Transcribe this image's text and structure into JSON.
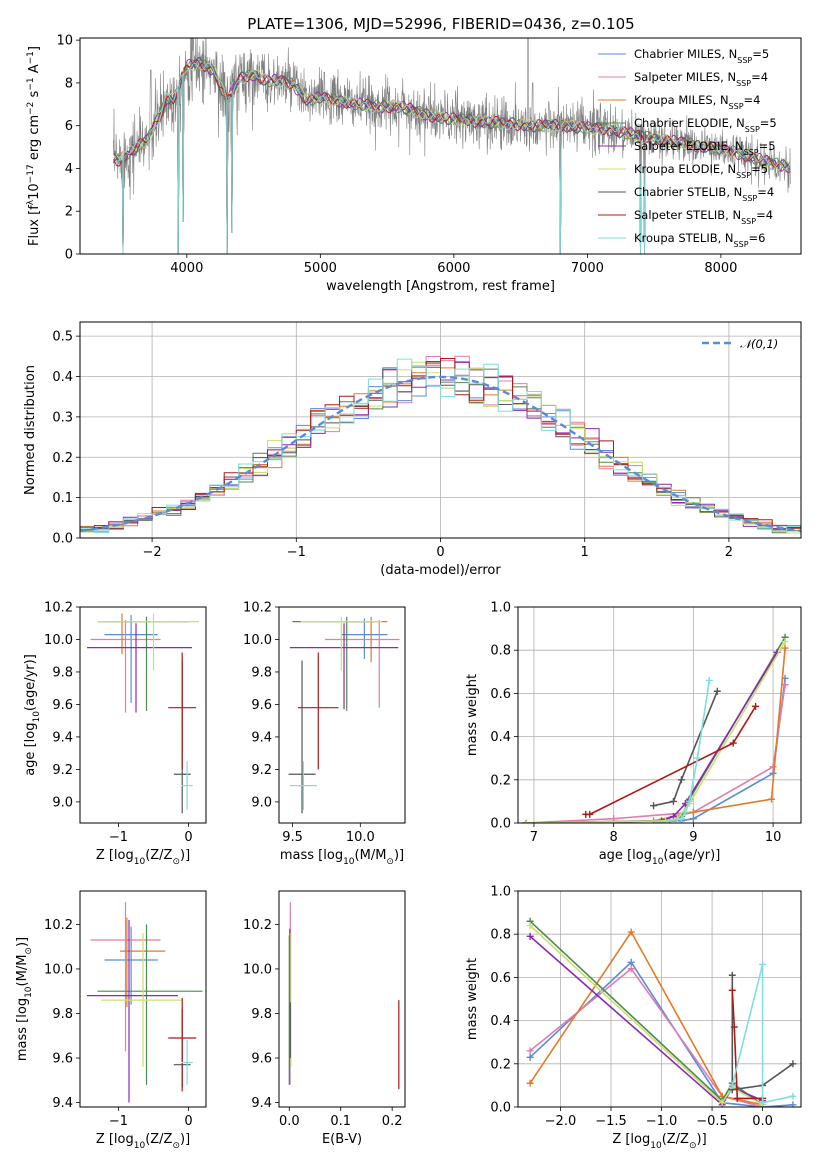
{
  "figure": {
    "title": "PLATE=1306, MJD=52996, FIBERID=0436, z=0.105"
  },
  "models": [
    {
      "name": "Chabrier MILES, N",
      "sub": "SSP",
      "tail": "=5",
      "color": "#5b8bd8"
    },
    {
      "name": "Salpeter MILES, N",
      "sub": "SSP",
      "tail": "=4",
      "color": "#e07cb0"
    },
    {
      "name": "Kroupa MILES, N",
      "sub": "SSP",
      "tail": "=4",
      "color": "#e07b28"
    },
    {
      "name": "Chabrier ELODIE, N",
      "sub": "SSP",
      "tail": "=5",
      "color": "#4e8a4e"
    },
    {
      "name": "Salpeter ELODIE, N",
      "sub": "SSP",
      "tail": "=5",
      "color": "#8e28b0"
    },
    {
      "name": "Kroupa ELODIE, N",
      "sub": "SSP",
      "tail": "=5",
      "color": "#c8e070"
    },
    {
      "name": "Chabrier STELIB, N",
      "sub": "SSP",
      "tail": "=4",
      "color": "#555555"
    },
    {
      "name": "Salpeter STELIB, N",
      "sub": "SSP",
      "tail": "=4",
      "color": "#b01818"
    },
    {
      "name": "Kroupa STELIB, N",
      "sub": "SSP",
      "tail": "=6",
      "color": "#80dede"
    }
  ],
  "chart_data": [
    {
      "id": "spectrum",
      "type": "line",
      "title": "PLATE=1306, MJD=52996, FIBERID=0436, z=0.105",
      "xlabel": "wavelength [Angstrom, rest frame]",
      "ylabel_parts": [
        "Flux [f",
        "λ",
        "10",
        "−17",
        " erg cm",
        "−2",
        " s",
        "−1",
        " A",
        "−1",
        "]"
      ],
      "xlim": [
        3200,
        8600
      ],
      "ylim": [
        0,
        10.1
      ],
      "xticks": [
        4000,
        5000,
        6000,
        7000,
        8000
      ],
      "yticks": [
        0,
        2,
        4,
        6,
        8,
        10
      ],
      "data_color": "#808080",
      "continuum_x": [
        3500,
        3600,
        3700,
        3800,
        3850,
        3900,
        3950,
        4000,
        4100,
        4200,
        4300,
        4400,
        4500,
        4600,
        4700,
        4800,
        4900,
        5000,
        5200,
        5400,
        5600,
        5800,
        6000,
        6200,
        6400,
        6600,
        6800,
        7000,
        7200,
        7400,
        7600,
        7800,
        8000,
        8200,
        8400,
        8500
      ],
      "continuum_y": [
        4.4,
        4.9,
        5.3,
        6.5,
        7.3,
        7.2,
        8.0,
        8.8,
        8.9,
        8.6,
        7.2,
        8.2,
        8.4,
        8.1,
        8.1,
        7.9,
        7.2,
        7.3,
        7.1,
        6.9,
        6.9,
        6.5,
        6.3,
        6.2,
        6.1,
        6.0,
        6.0,
        5.9,
        5.8,
        5.5,
        5.3,
        5.1,
        4.9,
        4.6,
        4.2,
        4.1
      ],
      "noise_amplitude": 1.4,
      "dips": [
        [
          3520,
          0
        ],
        [
          3935,
          0
        ],
        [
          3970,
          1.5
        ],
        [
          4300,
          0
        ],
        [
          4340,
          1.0
        ],
        [
          6800,
          0
        ],
        [
          7400,
          0
        ],
        [
          7430,
          0
        ]
      ],
      "spikes": [
        [
          6555,
          10.1
        ],
        [
          6590,
          8.0
        ],
        [
          5030,
          8.5
        ],
        [
          3730,
          8.6
        ]
      ],
      "legend": "upper right"
    },
    {
      "id": "residuals",
      "type": "histogram",
      "xlabel": "(data-model)/error",
      "ylabel": "Normed distribution",
      "xlim": [
        -2.5,
        2.5
      ],
      "ylim": [
        0,
        0.535
      ],
      "xticks": [
        -2,
        -1,
        0,
        1,
        2
      ],
      "yticks": [
        0,
        0.1,
        0.2,
        0.3,
        0.4,
        0.5
      ],
      "bin_width": 0.1,
      "gaussian_label": "𝒩(0,1)",
      "gaussian_color": "#5b8bd8",
      "grid": true,
      "legend": "upper right"
    },
    {
      "id": "age_vs_Z",
      "type": "errorbar",
      "xlabel_parts": [
        "Z [log",
        "10",
        "(Z/Z",
        "⊙",
        ")]"
      ],
      "ylabel_parts": [
        "age  [log",
        "10",
        "(age/yr)]"
      ],
      "xlim": [
        -1.55,
        0.25
      ],
      "ylim": [
        8.87,
        10.2
      ],
      "xticks": [
        -1,
        0
      ],
      "yticks": [
        9.0,
        9.2,
        9.4,
        9.6,
        9.8,
        10.0,
        10.2
      ],
      "ytick_labels": [
        "9.0",
        "9.2",
        "9.4",
        "9.6",
        "9.8",
        "10.0",
        "10.2"
      ],
      "points": [
        {
          "m": 0,
          "x": -0.82,
          "xerr": [
            0.38,
            0.38
          ],
          "y": 10.03,
          "yerr": [
            0.42,
            0.12
          ]
        },
        {
          "m": 1,
          "x": -0.9,
          "xerr": [
            0.5,
            0.5
          ],
          "y": 10.0,
          "yerr": [
            0.45,
            0.12
          ]
        },
        {
          "m": 2,
          "x": -0.95,
          "xerr": [
            0.1,
            0.12
          ],
          "y": 10.11,
          "yerr": [
            0.2,
            0.05
          ]
        },
        {
          "m": 3,
          "x": -0.6,
          "xerr": [
            0.7,
            0.6
          ],
          "y": 10.11,
          "yerr": [
            0.55,
            0.03
          ]
        },
        {
          "m": 4,
          "x": -0.75,
          "xerr": [
            0.7,
            0.8
          ],
          "y": 9.95,
          "yerr": [
            0.4,
            0.15
          ]
        },
        {
          "m": 5,
          "x": -0.5,
          "xerr": [
            0.8,
            0.65
          ],
          "y": 10.11,
          "yerr": [
            0.3,
            0.05
          ]
        },
        {
          "m": 6,
          "x": -0.09,
          "xerr": [
            0.12,
            0.12
          ],
          "y": 9.17,
          "yerr": [
            0.24,
            0.7
          ]
        },
        {
          "m": 7,
          "x": -0.09,
          "xerr": [
            0.2,
            0.2
          ],
          "y": 9.58,
          "yerr": [
            0.38,
            0.34
          ]
        },
        {
          "m": 8,
          "x": -0.02,
          "xerr": [
            0.08,
            0.08
          ],
          "y": 9.1,
          "yerr": [
            0.15,
            0.15
          ]
        }
      ]
    },
    {
      "id": "age_vs_mass",
      "type": "errorbar",
      "xlabel_parts": [
        "mass [log",
        "10",
        "(M/M",
        "⊙",
        ")]"
      ],
      "ylabel_parts": [],
      "xlim": [
        9.4,
        10.33
      ],
      "ylim": [
        8.87,
        10.2
      ],
      "xticks": [
        9.5,
        10.0
      ],
      "xtick_labels": [
        "9.5",
        "10.0"
      ],
      "yticks": [
        9.0,
        9.2,
        9.4,
        9.6,
        9.8,
        10.0,
        10.2
      ],
      "ytick_labels": [
        "9.0",
        "9.2",
        "9.4",
        "9.6",
        "9.8",
        "10.0",
        "10.2"
      ],
      "points": [
        {
          "m": 0,
          "x": 10.03,
          "xerr": [
            0.17,
            0.17
          ],
          "y": 10.03,
          "yerr": [
            0.15,
            0.1
          ]
        },
        {
          "m": 1,
          "x": 10.14,
          "xerr": [
            0.4,
            0.15
          ],
          "y": 10.0,
          "yerr": [
            0.42,
            0.12
          ]
        },
        {
          "m": 2,
          "x": 10.08,
          "xerr": [
            0.2,
            0.12
          ],
          "y": 10.11,
          "yerr": [
            0.25,
            0.03
          ]
        },
        {
          "m": 3,
          "x": 9.9,
          "xerr": [
            0.4,
            0.2
          ],
          "y": 10.11,
          "yerr": [
            0.55,
            0.03
          ]
        },
        {
          "m": 4,
          "x": 9.88,
          "xerr": [
            0.4,
            0.4
          ],
          "y": 9.95,
          "yerr": [
            0.38,
            0.15
          ]
        },
        {
          "m": 5,
          "x": 9.86,
          "xerr": [
            0.3,
            0.3
          ],
          "y": 10.11,
          "yerr": [
            0.3,
            0.03
          ]
        },
        {
          "m": 6,
          "x": 9.57,
          "xerr": [
            0.1,
            0.1
          ],
          "y": 9.17,
          "yerr": [
            0.24,
            0.7
          ]
        },
        {
          "m": 7,
          "x": 9.69,
          "xerr": [
            0.15,
            0.15
          ],
          "y": 9.58,
          "yerr": [
            0.38,
            0.34
          ]
        },
        {
          "m": 8,
          "x": 9.58,
          "xerr": [
            0.1,
            0.1
          ],
          "y": 9.1,
          "yerr": [
            0.15,
            0.15
          ]
        }
      ]
    },
    {
      "id": "weight_vs_age",
      "type": "line",
      "xlabel_parts": [
        "age  [log",
        "10",
        "(age/yr)]"
      ],
      "ylabel": "mass weight",
      "xlim": [
        6.8,
        10.35
      ],
      "ylim": [
        0,
        1.0
      ],
      "xticks": [
        7,
        8,
        9,
        10
      ],
      "yticks": [
        0,
        0.2,
        0.4,
        0.6,
        0.8,
        1.0
      ],
      "grid": true,
      "series": [
        {
          "m": 0,
          "x": [
            6.9,
            8.85,
            9.0,
            10.0,
            10.15
          ],
          "y": [
            0.0,
            0.01,
            0.02,
            0.23,
            0.67
          ]
        },
        {
          "m": 1,
          "x": [
            6.9,
            8.0,
            9.0,
            10.0,
            10.15
          ],
          "y": [
            0.0,
            0.02,
            0.05,
            0.26,
            0.64
          ]
        },
        {
          "m": 2,
          "x": [
            6.9,
            8.5,
            9.0,
            9.98,
            10.15
          ],
          "y": [
            0.0,
            0.01,
            0.05,
            0.11,
            0.81
          ]
        },
        {
          "m": 3,
          "x": [
            6.9,
            8.7,
            8.85,
            8.95,
            10.15
          ],
          "y": [
            0.0,
            0.01,
            0.03,
            0.11,
            0.86
          ]
        },
        {
          "m": 4,
          "x": [
            6.9,
            8.6,
            8.75,
            8.9,
            10.05
          ],
          "y": [
            0.0,
            0.01,
            0.03,
            0.09,
            0.79
          ]
        },
        {
          "m": 5,
          "x": [
            6.9,
            8.65,
            8.8,
            8.95,
            10.15
          ],
          "y": [
            0.0,
            0.01,
            0.02,
            0.09,
            0.84
          ]
        },
        {
          "m": 6,
          "x": [
            8.5,
            8.75,
            8.85,
            9.3
          ],
          "y": [
            0.08,
            0.1,
            0.2,
            0.61
          ]
        },
        {
          "m": 7,
          "x": [
            7.65,
            7.7,
            9.5,
            9.78
          ],
          "y": [
            0.04,
            0.04,
            0.37,
            0.54
          ]
        },
        {
          "m": 8,
          "x": [
            8.55,
            8.85,
            8.9,
            8.95,
            9.05,
            9.2
          ],
          "y": [
            0.0,
            0.02,
            0.05,
            0.1,
            0.3,
            0.66
          ]
        }
      ]
    },
    {
      "id": "mass_vs_Z",
      "type": "errorbar",
      "xlabel_parts": [
        "Z [log",
        "10",
        "(Z/Z",
        "⊙",
        ")]"
      ],
      "ylabel_parts": [
        "mass [log",
        "10",
        "(M/M",
        "⊙",
        ")]"
      ],
      "xlim": [
        -1.55,
        0.25
      ],
      "ylim": [
        9.38,
        10.35
      ],
      "xticks": [
        -1,
        0
      ],
      "yticks": [
        9.4,
        9.6,
        9.8,
        10.0,
        10.2
      ],
      "ytick_labels": [
        "9.4",
        "9.6",
        "9.8",
        "10.0",
        "10.2"
      ],
      "points": [
        {
          "m": 0,
          "x": -0.82,
          "xerr": [
            0.38,
            0.38
          ],
          "y": 10.04,
          "yerr": [
            0.2,
            0.15
          ]
        },
        {
          "m": 1,
          "x": -0.9,
          "xerr": [
            0.5,
            0.5
          ],
          "y": 10.13,
          "yerr": [
            0.5,
            0.17
          ]
        },
        {
          "m": 2,
          "x": -0.88,
          "xerr": [
            0.1,
            0.55
          ],
          "y": 10.08,
          "yerr": [
            0.25,
            0.15
          ]
        },
        {
          "m": 3,
          "x": -0.6,
          "xerr": [
            0.7,
            0.8
          ],
          "y": 9.9,
          "yerr": [
            0.42,
            0.3
          ]
        },
        {
          "m": 4,
          "x": -0.85,
          "xerr": [
            0.6,
            0.7
          ],
          "y": 9.88,
          "yerr": [
            0.48,
            0.34
          ]
        },
        {
          "m": 5,
          "x": -0.65,
          "xerr": [
            0.6,
            0.55
          ],
          "y": 9.86,
          "yerr": [
            0.3,
            0.3
          ]
        },
        {
          "m": 6,
          "x": -0.09,
          "xerr": [
            0.12,
            0.12
          ],
          "y": 9.57,
          "yerr": [
            0.1,
            0.25
          ]
        },
        {
          "m": 7,
          "x": -0.09,
          "xerr": [
            0.2,
            0.2
          ],
          "y": 9.69,
          "yerr": [
            0.24,
            0.18
          ]
        },
        {
          "m": 8,
          "x": -0.02,
          "xerr": [
            0.08,
            0.08
          ],
          "y": 9.58,
          "yerr": [
            0.1,
            0.1
          ]
        }
      ]
    },
    {
      "id": "mass_vs_ebv",
      "type": "errorbar",
      "xlabel": "E(B-V)",
      "ylabel_parts": [],
      "xlim": [
        -0.02,
        0.225
      ],
      "ylim": [
        9.38,
        10.35
      ],
      "xticks": [
        0.0,
        0.1,
        0.2
      ],
      "xtick_labels": [
        "0.0",
        "0.1",
        "0.2"
      ],
      "yticks": [
        9.4,
        9.6,
        9.8,
        10.0,
        10.2
      ],
      "ytick_labels": [
        "9.4",
        "9.6",
        "9.8",
        "10.0",
        "10.2"
      ],
      "points": [
        {
          "m": 1,
          "x": 0.002,
          "xerr": [
            0,
            0
          ],
          "y": 10.13,
          "yerr": [
            0.25,
            0.17
          ]
        },
        {
          "m": 4,
          "x": 0.001,
          "xerr": [
            0,
            0
          ],
          "y": 9.88,
          "yerr": [
            0.4,
            0.3
          ]
        },
        {
          "m": 3,
          "x": 0.0,
          "xerr": [
            0,
            0
          ],
          "y": 9.9,
          "yerr": [
            0.42,
            0.25
          ]
        },
        {
          "m": 5,
          "x": 0.003,
          "xerr": [
            0,
            0
          ],
          "y": 9.86,
          "yerr": [
            0.3,
            0.3
          ]
        },
        {
          "m": 6,
          "x": 0.002,
          "xerr": [
            0,
            0
          ],
          "y": 9.75,
          "yerr": [
            0.15,
            0.1
          ]
        },
        {
          "m": 7,
          "x": 0.213,
          "xerr": [
            0,
            0
          ],
          "y": 9.66,
          "yerr": [
            0.2,
            0.2
          ]
        }
      ]
    },
    {
      "id": "weight_vs_Z",
      "type": "line",
      "xlabel_parts": [
        "Z [log",
        "10",
        "(Z/Z",
        "⊙",
        ")]"
      ],
      "ylabel": "mass weight",
      "xlim": [
        -2.42,
        0.38
      ],
      "ylim": [
        0,
        1.0
      ],
      "xticks": [
        -2.0,
        -1.5,
        -1.0,
        -0.5,
        0.0
      ],
      "xtick_labels": [
        "−2.0",
        "−1.5",
        "−1.0",
        "−0.5",
        "0.0"
      ],
      "yticks": [
        0,
        0.2,
        0.4,
        0.6,
        0.8,
        1.0
      ],
      "grid": true,
      "series": [
        {
          "m": 0,
          "x": [
            -2.3,
            -1.3,
            -0.4,
            0.0,
            0.3
          ],
          "y": [
            0.23,
            0.67,
            0.02,
            0.0,
            0.01
          ]
        },
        {
          "m": 1,
          "x": [
            -2.3,
            -1.3,
            -0.4,
            0.0
          ],
          "y": [
            0.26,
            0.64,
            0.05,
            0.0
          ]
        },
        {
          "m": 2,
          "x": [
            -2.3,
            -1.3,
            -0.4,
            0.0
          ],
          "y": [
            0.11,
            0.81,
            0.05,
            0.01
          ]
        },
        {
          "m": 3,
          "x": [
            -2.3,
            -0.4,
            -0.3,
            0.0
          ],
          "y": [
            0.86,
            0.03,
            0.11,
            0.01
          ]
        },
        {
          "m": 4,
          "x": [
            -2.3,
            -0.4,
            -0.3,
            0.0
          ],
          "y": [
            0.79,
            0.01,
            0.09,
            0.03
          ]
        },
        {
          "m": 5,
          "x": [
            -2.3,
            -0.4,
            -0.3,
            0.0
          ],
          "y": [
            0.84,
            0.02,
            0.09,
            0.01
          ]
        },
        {
          "m": 6,
          "x": [
            -0.3,
            -0.3,
            0.0,
            0.3
          ],
          "y": [
            0.61,
            0.08,
            0.1,
            0.2
          ]
        },
        {
          "m": 7,
          "x": [
            -0.3,
            -0.28,
            -0.25,
            0.0
          ],
          "y": [
            0.54,
            0.37,
            0.04,
            0.04
          ]
        },
        {
          "m": 8,
          "x": [
            -0.3,
            0.0,
            0.0,
            0.3
          ],
          "y": [
            0.1,
            0.66,
            0.02,
            0.05
          ]
        }
      ]
    }
  ]
}
